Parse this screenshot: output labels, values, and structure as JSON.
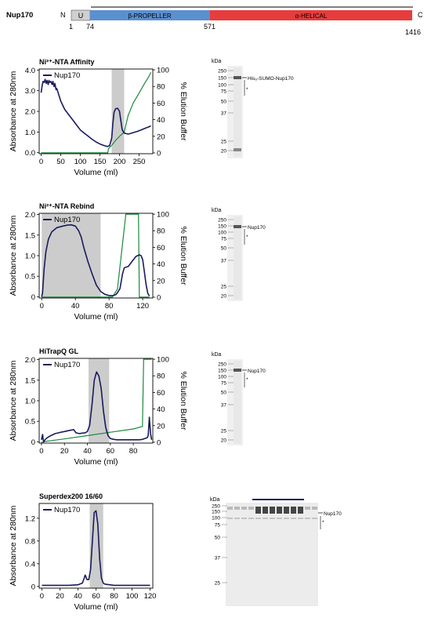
{
  "domain_bar": {
    "protein": "Nup170",
    "n_label": "N",
    "c_label": "C",
    "u_label": "U",
    "beta_label": "β-PROPELLER",
    "alpha_label": "α-HELICAL",
    "positions": [
      "1",
      "74",
      "571",
      "1416"
    ],
    "colors": {
      "u": "#d0d0d0",
      "beta": "#5b8fd0",
      "alpha": "#e63c3c"
    }
  },
  "chart_data": [
    {
      "type": "line",
      "title": "Ni²⁺-NTA Affinity",
      "xlabel": "Volume (ml)",
      "ylabel": "Absorbance at 280nm",
      "y2label": "% Elution Buffer",
      "xlim": [
        -5,
        285
      ],
      "ylim": [
        -0.05,
        4.05
      ],
      "y2lim": [
        -1,
        101
      ],
      "xticks": [
        0,
        50,
        100,
        150,
        200,
        250
      ],
      "yticks": [
        0.0,
        1.0,
        2.0,
        3.0,
        4.0
      ],
      "y2ticks": [
        0,
        20,
        40,
        60,
        80,
        100
      ],
      "ytick_labels": [
        "0.0",
        "1.0",
        "2.0",
        "3.0",
        "4.0"
      ],
      "shade": [
        [
          180,
          212
        ]
      ],
      "legend": "Nup170",
      "absorbance": {
        "x": [
          0,
          3,
          5,
          8,
          10,
          13,
          15,
          18,
          20,
          22,
          25,
          28,
          30,
          33,
          35,
          38,
          40,
          45,
          50,
          55,
          60,
          70,
          80,
          90,
          100,
          110,
          120,
          130,
          140,
          150,
          160,
          165,
          170,
          175,
          180,
          183,
          186,
          190,
          195,
          200,
          203,
          207,
          212,
          217,
          222,
          227,
          235,
          245,
          255,
          265,
          275,
          280
        ],
        "y": [
          2.9,
          3.3,
          3.45,
          3.4,
          3.55,
          3.35,
          3.5,
          3.3,
          3.5,
          3.4,
          3.45,
          3.3,
          3.45,
          3.2,
          3.35,
          3.05,
          3.1,
          2.8,
          2.5,
          2.3,
          2.1,
          1.85,
          1.6,
          1.35,
          1.1,
          0.95,
          0.8,
          0.65,
          0.52,
          0.42,
          0.35,
          0.32,
          0.3,
          0.35,
          0.7,
          1.4,
          1.95,
          2.12,
          2.15,
          2.0,
          1.6,
          1.1,
          0.95,
          0.92,
          0.9,
          0.92,
          0.97,
          1.03,
          1.1,
          1.18,
          1.25,
          1.3
        ]
      },
      "elution": {
        "x": [
          0,
          170,
          172,
          180,
          190,
          200,
          212,
          222,
          235,
          250,
          262,
          275,
          280
        ],
        "y": [
          0,
          0,
          5,
          9,
          15,
          20,
          25,
          45,
          60,
          72,
          82,
          92,
          97
        ]
      }
    },
    {
      "type": "line",
      "title": "Ni²⁺-NTA Rebind",
      "xlabel": "Volume (ml)",
      "ylabel": "Absorbance at 280nm",
      "y2label": "% Elution Buffer",
      "xlim": [
        -3,
        132
      ],
      "ylim": [
        -0.03,
        2.03
      ],
      "y2lim": [
        -1,
        101
      ],
      "xticks": [
        0,
        40,
        80,
        120
      ],
      "yticks": [
        0.0,
        0.5,
        1.0,
        1.5,
        2.0
      ],
      "y2ticks": [
        0,
        20,
        40,
        60,
        80,
        100
      ],
      "ytick_labels": [
        "0",
        "0.5",
        "1.0",
        "1.5",
        "2.0"
      ],
      "shade": [
        [
          0,
          70
        ]
      ],
      "legend": "Nup170",
      "absorbance": {
        "x": [
          0,
          1,
          3,
          5,
          8,
          12,
          18,
          25,
          30,
          35,
          40,
          44,
          47,
          50,
          55,
          60,
          65,
          70,
          75,
          80,
          85,
          88,
          90,
          93,
          96,
          98,
          100,
          103,
          107,
          112,
          116,
          118,
          120,
          122,
          124,
          126,
          128
        ],
        "y": [
          0.0,
          0.1,
          0.7,
          1.1,
          1.4,
          1.58,
          1.68,
          1.72,
          1.74,
          1.75,
          1.72,
          1.6,
          1.45,
          1.2,
          0.85,
          0.55,
          0.28,
          0.13,
          0.06,
          0.03,
          0.03,
          0.05,
          0.1,
          0.2,
          0.55,
          0.7,
          0.72,
          0.74,
          0.85,
          0.98,
          1.02,
          1.0,
          0.9,
          0.6,
          0.3,
          0.08,
          0.02
        ]
      },
      "elution": {
        "x": [
          0,
          84,
          90,
          100,
          101,
          115,
          116,
          128
        ],
        "y": [
          0,
          0,
          10,
          100,
          100,
          100,
          0,
          0
        ]
      }
    },
    {
      "type": "line",
      "title": "HiTrapQ GL",
      "xlabel": "Volume (ml)",
      "ylabel": "Absorbance at 280nm",
      "y2label": "% Elution Buffer",
      "xlim": [
        -2,
        97
      ],
      "ylim": [
        -0.03,
        2.03
      ],
      "y2lim": [
        -1,
        101
      ],
      "xticks": [
        0,
        20,
        40,
        60,
        80
      ],
      "yticks": [
        0.0,
        0.5,
        1.0,
        1.5,
        2.0
      ],
      "y2ticks": [
        0,
        20,
        40,
        60,
        80,
        100
      ],
      "ytick_labels": [
        "0",
        "0.5",
        "1.0",
        "1.5",
        "2.0"
      ],
      "shade": [
        [
          41,
          59
        ]
      ],
      "legend": "Nup170",
      "absorbance": {
        "x": [
          0,
          1,
          1.5,
          2,
          3,
          5,
          8,
          12,
          15,
          18,
          20,
          23,
          25,
          27,
          28,
          30,
          33,
          35,
          38,
          40,
          42,
          44,
          46,
          48,
          50,
          52,
          54,
          56,
          58,
          60,
          63,
          66,
          70,
          75,
          80,
          85,
          88,
          90,
          92,
          93,
          94,
          95,
          96
        ],
        "y": [
          0.05,
          0.18,
          0.05,
          0.0,
          0.05,
          0.1,
          0.15,
          0.2,
          0.22,
          0.24,
          0.25,
          0.27,
          0.28,
          0.29,
          0.3,
          0.22,
          0.2,
          0.21,
          0.22,
          0.25,
          0.4,
          0.9,
          1.5,
          1.7,
          1.6,
          1.3,
          0.75,
          0.35,
          0.15,
          0.08,
          0.06,
          0.05,
          0.05,
          0.05,
          0.05,
          0.05,
          0.06,
          0.08,
          0.1,
          0.15,
          0.6,
          0.2,
          0.05
        ]
      },
      "elution": {
        "x": [
          0,
          1,
          3,
          20,
          40,
          60,
          80,
          88,
          89,
          96
        ],
        "y": [
          0,
          0,
          1,
          4,
          8,
          12,
          16,
          19,
          100,
          100
        ]
      }
    },
    {
      "type": "line",
      "title": "Superdex200 16/60",
      "xlabel": "Volume (ml)",
      "ylabel": "Absorbance at 280nm",
      "y2label": "",
      "xlim": [
        -3,
        123
      ],
      "ylim": [
        -0.03,
        1.46
      ],
      "y2lim": null,
      "xticks": [
        0,
        20,
        40,
        60,
        80,
        100,
        120
      ],
      "yticks": [
        0.0,
        0.4,
        0.8,
        1.2
      ],
      "y2ticks": [],
      "ytick_labels": [
        "0",
        "0.4",
        "0.8",
        "1.2"
      ],
      "shade": [
        [
          53,
          68
        ]
      ],
      "legend": "Nup170",
      "absorbance": {
        "x": [
          0,
          5,
          10,
          20,
          30,
          40,
          45,
          47,
          48,
          50,
          52,
          54,
          56,
          58,
          60,
          62,
          64,
          66,
          68,
          70,
          75,
          80,
          90,
          100,
          110,
          120
        ],
        "y": [
          0.02,
          0.02,
          0.02,
          0.02,
          0.02,
          0.03,
          0.06,
          0.15,
          0.2,
          0.12,
          0.12,
          0.3,
          0.8,
          1.3,
          1.33,
          1.1,
          0.5,
          0.15,
          0.06,
          0.04,
          0.03,
          0.02,
          0.02,
          0.02,
          0.02,
          0.02
        ]
      },
      "elution": null
    }
  ],
  "gels": [
    {
      "kda_label": "kDa",
      "markers": [
        "250",
        "150",
        "100",
        "75",
        "50",
        "37",
        "25",
        "20"
      ],
      "band_label": "His₆-SUMO-Nup170",
      "star": "*"
    },
    {
      "kda_label": "kDa",
      "markers": [
        "250",
        "150",
        "100",
        "75",
        "50",
        "37",
        "25",
        "20"
      ],
      "band_label": "Nup170",
      "star": "*"
    },
    {
      "kda_label": "kDa",
      "markers": [
        "250",
        "150",
        "100",
        "75",
        "50",
        "37",
        "25",
        "20"
      ],
      "band_label": "Nup170",
      "star": "*"
    },
    {
      "kda_label": "kDa",
      "markers": [
        "250",
        "150",
        "100",
        "75",
        "50",
        "37",
        "25"
      ],
      "band_label": "Nup170",
      "star": "*"
    }
  ],
  "colors": {
    "absorbance": "#1a1a5e",
    "elution": "#1a8a3a",
    "shade": "#cccccc"
  }
}
